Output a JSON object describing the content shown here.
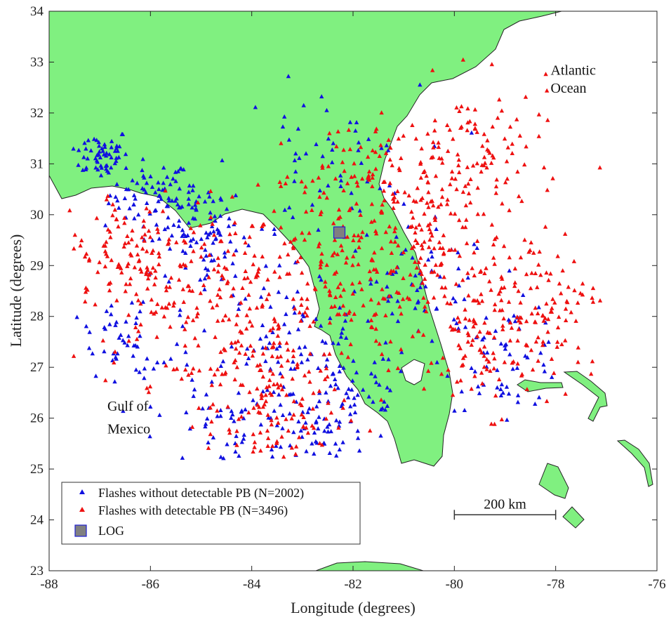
{
  "chart_data": {
    "type": "scatter",
    "title": "",
    "xlabel": "Longitude (degrees)",
    "ylabel": "Latitude (degrees)",
    "xlim": [
      -88,
      -76
    ],
    "ylim": [
      23,
      34
    ],
    "xticks": [
      -88,
      -86,
      -84,
      -82,
      -80,
      -78,
      -76
    ],
    "yticks": [
      23,
      24,
      25,
      26,
      27,
      28,
      29,
      30,
      31,
      32,
      33,
      34
    ],
    "grid": false,
    "legend_position": "bottom-left",
    "series": [
      {
        "name": "Flashes without detectable PB (N=2002)",
        "color": "#1010e0",
        "marker": "triangle",
        "count": 2002,
        "clusters": [
          {
            "lon": -86.0,
            "lat": 30.4,
            "spread": 0.4
          },
          {
            "lon": -85.2,
            "lat": 30.0,
            "spread": 0.4
          },
          {
            "lon": -87.0,
            "lat": 31.2,
            "spread": 0.3
          },
          {
            "lon": -84.8,
            "lat": 29.2,
            "spread": 0.6
          },
          {
            "lon": -83.2,
            "lat": 27.6,
            "spread": 0.6
          },
          {
            "lon": -82.8,
            "lat": 25.5,
            "spread": 0.5
          },
          {
            "lon": -82.0,
            "lat": 26.5,
            "spread": 0.6
          },
          {
            "lon": -80.6,
            "lat": 28.5,
            "spread": 0.7
          },
          {
            "lon": -79.0,
            "lat": 27.2,
            "spread": 0.6
          },
          {
            "lon": -82.5,
            "lat": 31.0,
            "spread": 0.9
          },
          {
            "lon": -86.5,
            "lat": 27.3,
            "spread": 0.7
          },
          {
            "lon": -84.5,
            "lat": 26.0,
            "spread": 0.7
          }
        ]
      },
      {
        "name": "Flashes with detectable PB (N=3496)",
        "color": "#ee1010",
        "marker": "triangle",
        "count": 3496,
        "clusters": [
          {
            "lon": -82.3,
            "lat": 28.6,
            "spread": 0.7
          },
          {
            "lon": -84.2,
            "lat": 29.0,
            "spread": 0.9
          },
          {
            "lon": -85.5,
            "lat": 28.2,
            "spread": 0.9
          },
          {
            "lon": -84.0,
            "lat": 27.0,
            "spread": 0.9
          },
          {
            "lon": -80.3,
            "lat": 28.6,
            "spread": 0.9
          },
          {
            "lon": -79.2,
            "lat": 27.3,
            "spread": 0.7
          },
          {
            "lon": -79.5,
            "lat": 31.2,
            "spread": 0.8
          },
          {
            "lon": -80.5,
            "lat": 30.2,
            "spread": 0.7
          },
          {
            "lon": -82.0,
            "lat": 30.6,
            "spread": 0.8
          },
          {
            "lon": -83.5,
            "lat": 26.0,
            "spread": 0.7
          },
          {
            "lon": -78.5,
            "lat": 28.5,
            "spread": 0.7
          },
          {
            "lon": -86.5,
            "lat": 29.3,
            "spread": 0.7
          }
        ]
      }
    ],
    "markers": [
      {
        "name": "LOG",
        "lon": -82.27,
        "lat": 29.65,
        "color": "#808080",
        "edge": "#2020d0",
        "marker": "square"
      }
    ],
    "annotations": [
      {
        "text": "Atlantic",
        "lon": -78.1,
        "lat": 32.75
      },
      {
        "text": "Ocean",
        "lon": -78.1,
        "lat": 32.4
      },
      {
        "text": "Gulf of",
        "lon": -86.85,
        "lat": 26.15
      },
      {
        "text": "Mexico",
        "lon": -86.85,
        "lat": 25.7
      }
    ],
    "scalebar": {
      "label": "200 km",
      "from_lon": -80.0,
      "to_lon": -78.0,
      "lat": 24.1
    }
  }
}
